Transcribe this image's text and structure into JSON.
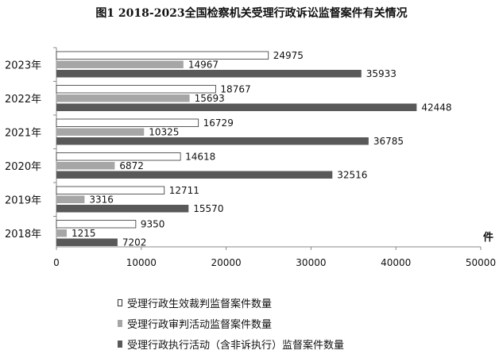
{
  "chart_data": {
    "type": "bar",
    "orientation": "horizontal",
    "title": "图1 2018-2023全国检察机关受理行政诉讼监督案件有关情况",
    "categories": [
      "2018年",
      "2019年",
      "2020年",
      "2021年",
      "2022年",
      "2023年"
    ],
    "series": [
      {
        "name": "受理行政生效裁判监督案件数量",
        "values": [
          9350,
          12711,
          14618,
          16729,
          18767,
          24975
        ],
        "color": "#ffffff"
      },
      {
        "name": "受理行政审判活动监督案件数量",
        "values": [
          1215,
          3316,
          6872,
          10325,
          15693,
          14967
        ],
        "color": "#a6a6a6"
      },
      {
        "name": "受理行政执行活动（含非诉执行）监督案件数量",
        "values": [
          7202,
          15570,
          32516,
          36785,
          42448,
          35933
        ],
        "color": "#595959"
      }
    ],
    "xlim": [
      0,
      50000
    ],
    "xticks": [
      0,
      10000,
      20000,
      30000,
      40000,
      50000
    ],
    "unit": "件",
    "legend_position": "bottom-left",
    "grid": false
  }
}
